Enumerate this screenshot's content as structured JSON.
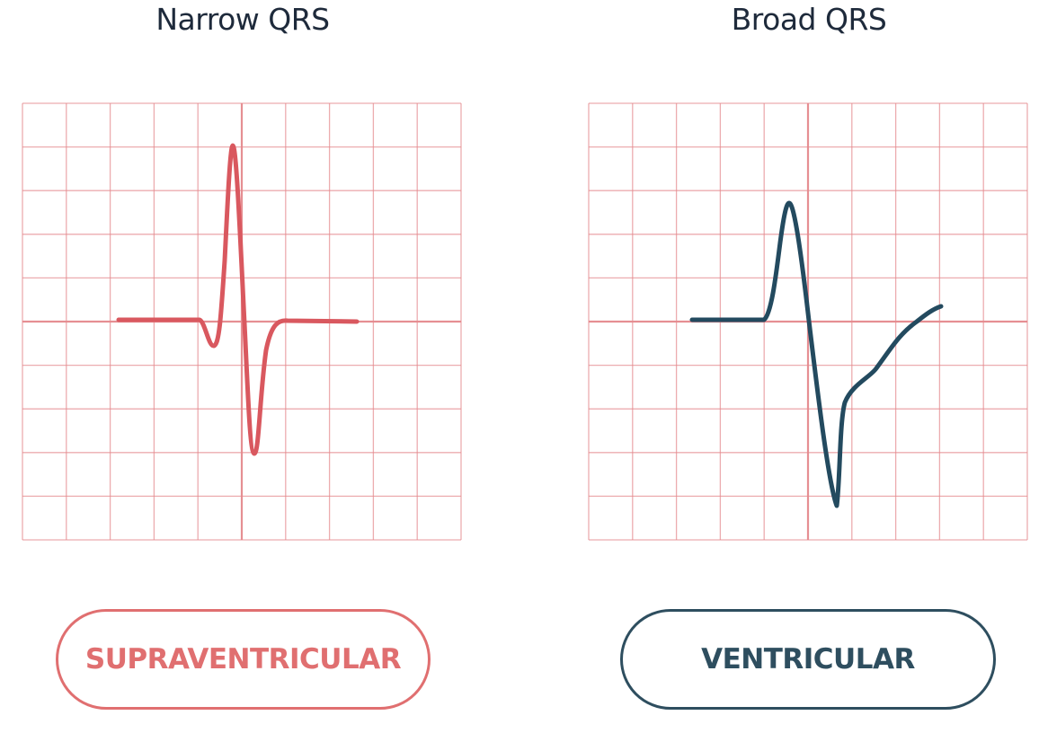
{
  "panels": [
    {
      "title": "Narrow QRS",
      "label": "SUPRAVENTRICULAR",
      "trace_color": "#d9585f",
      "label_color": "#e06f70"
    },
    {
      "title": "Broad QRS",
      "label": "VENTRICULAR",
      "trace_color": "#234a5f",
      "label_color": "#2e4e5f"
    }
  ],
  "grid_color": "#e58a8e"
}
